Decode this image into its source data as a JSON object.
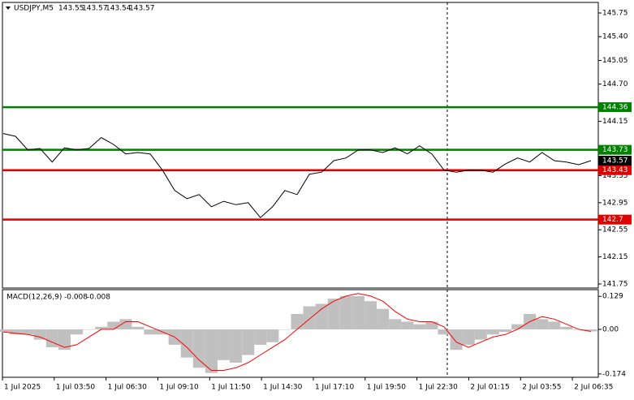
{
  "chart_data": [
    {
      "type": "line",
      "title": "USDJPY,M5",
      "ohlc": [
        143.55,
        143.57,
        143.54,
        143.57
      ],
      "series": [
        {
          "color": "#000000",
          "values": [
            143.97,
            143.93,
            143.73,
            143.75,
            143.55,
            143.76,
            143.73,
            143.75,
            143.91,
            143.81,
            143.67,
            143.69,
            143.67,
            143.43,
            143.13,
            143.01,
            143.07,
            142.89,
            142.97,
            142.92,
            142.95,
            142.73,
            142.89,
            143.13,
            143.07,
            143.37,
            143.4,
            143.57,
            143.61,
            143.73,
            143.73,
            143.69,
            143.76,
            143.67,
            143.79,
            143.67,
            143.43,
            143.4,
            143.43,
            143.43,
            143.4,
            143.52,
            143.61,
            143.55,
            143.69,
            143.57,
            143.55,
            143.51,
            143.57
          ]
        }
      ],
      "levels": [
        {
          "value": 144.36,
          "color": "#008000"
        },
        {
          "value": 143.73,
          "color": "#008000"
        },
        {
          "value": 143.43,
          "color": "#e00000"
        },
        {
          "value": 142.7,
          "color": "#e00000"
        }
      ],
      "last_price": 143.57,
      "ylim": [
        141.75,
        145.75
      ],
      "yticks": [
        145.75,
        {
          "value": 145.4,
          "label": "145.40"
        },
        145.05,
        {
          "value": 144.7,
          "label": "144.70"
        },
        144.15,
        143.35,
        142.95,
        142.55,
        142.15,
        141.75
      ]
    },
    {
      "type": "macd",
      "title": "MACD(12,26,9)",
      "current": [
        -0.008,
        -0.008
      ],
      "histogram": {
        "color": "#c0c0c0",
        "values": [
          -0.01,
          -0.02,
          -0.02,
          -0.04,
          -0.07,
          -0.08,
          -0.02,
          0.0,
          0.01,
          0.03,
          0.04,
          0.01,
          -0.02,
          -0.02,
          -0.06,
          -0.11,
          -0.15,
          -0.17,
          -0.12,
          -0.13,
          -0.1,
          -0.06,
          -0.05,
          0.0,
          0.06,
          0.09,
          0.1,
          0.12,
          0.13,
          0.13,
          0.11,
          0.08,
          0.04,
          0.03,
          0.02,
          0.03,
          -0.02,
          -0.08,
          -0.06,
          -0.04,
          -0.02,
          -0.01,
          0.02,
          0.06,
          0.04,
          0.03,
          0.01,
          0.0,
          -0.008
        ]
      },
      "signal": {
        "color": "#ff0000",
        "values": [
          -0.01,
          -0.015,
          -0.02,
          -0.03,
          -0.05,
          -0.07,
          -0.06,
          -0.03,
          0.0,
          0.0,
          0.03,
          0.03,
          0.01,
          -0.01,
          -0.03,
          -0.07,
          -0.12,
          -0.16,
          -0.16,
          -0.15,
          -0.13,
          -0.1,
          -0.07,
          -0.04,
          0.0,
          0.04,
          0.08,
          0.11,
          0.13,
          0.14,
          0.13,
          0.11,
          0.07,
          0.04,
          0.03,
          0.03,
          0.01,
          -0.05,
          -0.07,
          -0.05,
          -0.03,
          -0.02,
          0.0,
          0.03,
          0.05,
          0.04,
          0.02,
          0.0,
          -0.008
        ]
      },
      "ylim": [
        -0.187,
        0.155
      ],
      "yticks": [
        0.129,
        {
          "value": 0,
          "label": "0.00"
        },
        -0.174
      ],
      "categories": [
        "1 Jul 2025",
        "1 Jul 03:50",
        "1 Jul 06:30",
        "1 Jul 09:10",
        "1 Jul 11:50",
        "1 Jul 14:30",
        "1 Jul 17:10",
        "1 Jul 19:50",
        "1 Jul 22:30",
        "2 Jul 01:15",
        "2 Jul 03:55",
        "2 Jul 06:35"
      ]
    }
  ]
}
